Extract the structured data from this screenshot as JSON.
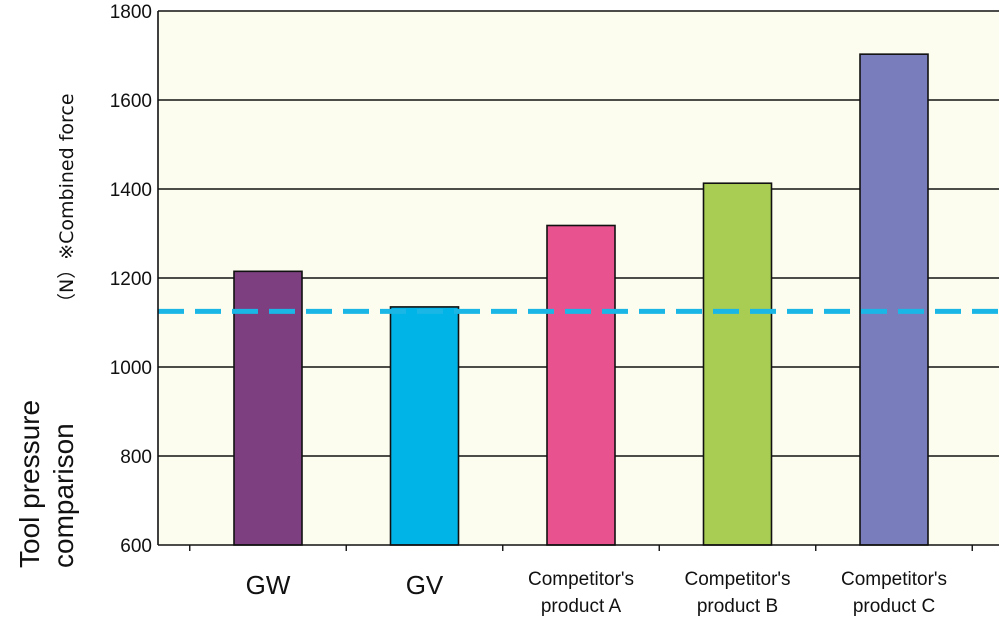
{
  "chart_data": {
    "type": "bar",
    "ylabel": "Tool pressure comparison",
    "ylabel_lines": [
      "Tool pressure",
      "comparison"
    ],
    "unit_label": "（N）※Combined force",
    "categories": [
      "GW",
      "GV",
      "Competitor's product A",
      "Competitor's product B",
      "Competitor's product C"
    ],
    "category_lines": [
      [
        "GW"
      ],
      [
        "GV"
      ],
      [
        "Competitor's",
        "product A"
      ],
      [
        "Competitor's",
        "product B"
      ],
      [
        "Competitor's",
        "product C"
      ]
    ],
    "values": [
      1215,
      1135,
      1318,
      1413,
      1703
    ],
    "bar_colors": [
      "#7d3f80",
      "#00b4e8",
      "#e8528e",
      "#a9cd52",
      "#7a7dbb"
    ],
    "ylim": [
      600,
      1800
    ],
    "yticks": [
      600,
      800,
      1000,
      1200,
      1400,
      1600,
      1800
    ],
    "reference_line": {
      "value": 1125,
      "color": "#1ab6e6",
      "style": "dashed"
    },
    "plot_background": "#fdfdef",
    "grid": true
  }
}
